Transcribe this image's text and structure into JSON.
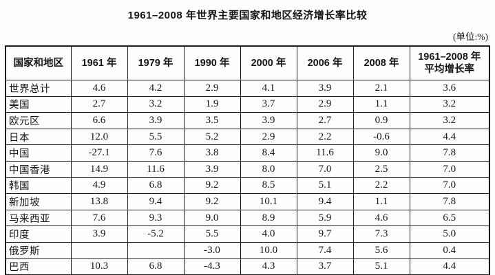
{
  "title": "1961–2008 年世界主要国家和地区经济增长率比较",
  "unit_note": "(单位:%)",
  "table": {
    "headers": [
      "国家和地区",
      "1961 年",
      "1979 年",
      "1990 年",
      "2000 年",
      "2006 年",
      "2008 年"
    ],
    "avg_header_line1": "1961–2008 年",
    "avg_header_line2": "平均增长率",
    "rows": [
      {
        "label": "世界总计",
        "values": [
          "4.6",
          "4.2",
          "2.9",
          "4.1",
          "3.9",
          "2.1",
          "3.6"
        ]
      },
      {
        "label": "美国",
        "values": [
          "2.7",
          "3.2",
          "1.9",
          "3.7",
          "2.9",
          "1.1",
          "3.2"
        ]
      },
      {
        "label": "欧元区",
        "values": [
          "6.6",
          "3.9",
          "3.5",
          "3.9",
          "2.7",
          "0.9",
          "3.2"
        ]
      },
      {
        "label": "日本",
        "values": [
          "12.0",
          "5.5",
          "5.2",
          "2.9",
          "2.2",
          "-0.6",
          "4.4"
        ]
      },
      {
        "label": "中国",
        "values": [
          "-27.1",
          "7.6",
          "3.8",
          "8.4",
          "11.6",
          "9.0",
          "7.8"
        ]
      },
      {
        "label": "中国香港",
        "values": [
          "14.9",
          "11.6",
          "3.9",
          "8.0",
          "7.0",
          "2.5",
          "7.0"
        ]
      },
      {
        "label": "韩国",
        "values": [
          "4.9",
          "6.8",
          "9.2",
          "8.5",
          "5.1",
          "2.2",
          "7.0"
        ]
      },
      {
        "label": "新加坡",
        "values": [
          "13.8",
          "9.4",
          "9.2",
          "10.1",
          "9.4",
          "1.1",
          "7.8"
        ]
      },
      {
        "label": "马来西亚",
        "values": [
          "7.6",
          "9.3",
          "9.0",
          "8.9",
          "5.9",
          "4.6",
          "6.5"
        ]
      },
      {
        "label": "印度",
        "values": [
          "3.9",
          "-5.2",
          "5.5",
          "4.0",
          "9.7",
          "7.3",
          "5.0"
        ]
      },
      {
        "label": "俄罗斯",
        "values": [
          "",
          "",
          "-3.0",
          "10.0",
          "7.4",
          "5.6",
          "0.4"
        ]
      },
      {
        "label": "巴西",
        "values": [
          "10.3",
          "6.8",
          "-4.3",
          "4.3",
          "3.7",
          "5.1",
          "4.4"
        ]
      }
    ]
  }
}
